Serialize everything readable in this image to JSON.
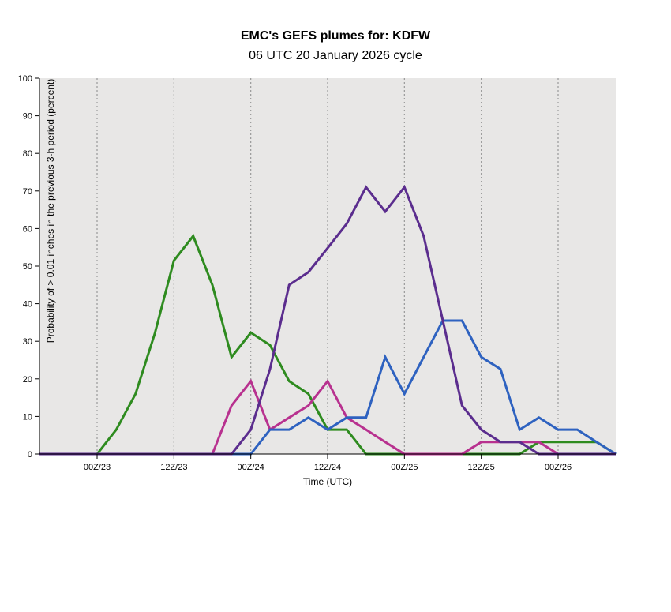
{
  "chart_data": {
    "type": "line",
    "title": "EMC's GEFS plumes for: KDFW",
    "subtitle": "06 UTC 20 January 2026 cycle",
    "xlabel": "Time (UTC)",
    "ylabel": "Probability of > 0.01 inches in the previous 3-h period (percent)",
    "ylim": [
      0,
      100
    ],
    "y_ticks": [
      0,
      10,
      20,
      30,
      40,
      50,
      60,
      70,
      80,
      90,
      100
    ],
    "x_step_hours": 3,
    "x_range_steps": [
      0,
      30
    ],
    "x_ticks": [
      {
        "step": 3,
        "label": "00Z/23"
      },
      {
        "step": 7,
        "label": "12Z/23"
      },
      {
        "step": 11,
        "label": "00Z/24"
      },
      {
        "step": 15,
        "label": "12Z/24"
      },
      {
        "step": 19,
        "label": "00Z/25"
      },
      {
        "step": 23,
        "label": "12Z/25"
      },
      {
        "step": 27,
        "label": "00Z/26"
      }
    ],
    "grid": "vertical dotted at x ticks",
    "colors": {
      "plot_bg": "#e8e7e6",
      "grid": "#999999"
    },
    "series": [
      {
        "name": "green",
        "color": "#2e8b1f",
        "values": [
          0,
          0,
          0,
          0,
          6.5,
          16,
          32,
          51.5,
          58,
          45,
          25.8,
          32.3,
          29,
          19.4,
          16,
          6.5,
          6.5,
          0,
          0,
          0,
          0,
          0,
          0,
          0,
          0,
          0,
          3.2,
          3.2,
          3.2,
          3.2,
          0
        ]
      },
      {
        "name": "magenta",
        "color": "#b8318f",
        "values": [
          0,
          0,
          0,
          0,
          0,
          0,
          0,
          0,
          0,
          0,
          12.9,
          19.4,
          6.5,
          9.7,
          12.9,
          19.4,
          9.7,
          6.5,
          3.2,
          0,
          0,
          0,
          0,
          3.2,
          3.2,
          3.2,
          3.2,
          0,
          0,
          0,
          0
        ]
      },
      {
        "name": "blue",
        "color": "#2e62c0",
        "values": [
          0,
          0,
          0,
          0,
          0,
          0,
          0,
          0,
          0,
          0,
          0,
          0,
          6.5,
          6.5,
          9.7,
          6.5,
          9.7,
          9.7,
          25.8,
          16,
          25.8,
          35.5,
          35.5,
          25.8,
          22.6,
          6.5,
          9.7,
          6.5,
          6.5,
          3.2,
          0
        ]
      },
      {
        "name": "purple",
        "color": "#5b2d8e",
        "values": [
          0,
          0,
          0,
          0,
          0,
          0,
          0,
          0,
          0,
          0,
          0,
          6.5,
          22.6,
          45,
          48.4,
          54.8,
          61.3,
          71,
          64.5,
          71,
          58,
          35.5,
          12.9,
          6.5,
          3.2,
          3.2,
          0,
          0,
          0,
          0,
          0
        ]
      }
    ]
  }
}
